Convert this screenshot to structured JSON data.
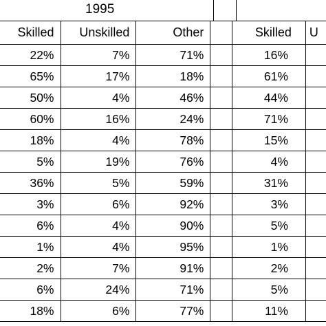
{
  "year_label": "1995",
  "headers": {
    "skilled": "Skilled",
    "unskilled": "Unskilled",
    "other": "Other",
    "gap": "",
    "skilled_2": "Skilled",
    "unskilled_2_partial": "U"
  },
  "rows": [
    {
      "skilled": "22%",
      "unskilled": "7%",
      "other": "71%",
      "skilled_2": "16%"
    },
    {
      "skilled": "65%",
      "unskilled": "17%",
      "other": "18%",
      "skilled_2": "61%"
    },
    {
      "skilled": "50%",
      "unskilled": "4%",
      "other": "46%",
      "skilled_2": "44%"
    },
    {
      "skilled": "60%",
      "unskilled": "16%",
      "other": "24%",
      "skilled_2": "71%"
    },
    {
      "skilled": "18%",
      "unskilled": "4%",
      "other": "78%",
      "skilled_2": "15%"
    },
    {
      "skilled": "5%",
      "unskilled": "19%",
      "other": "76%",
      "skilled_2": "4%"
    },
    {
      "skilled": "36%",
      "unskilled": "5%",
      "other": "59%",
      "skilled_2": "31%"
    },
    {
      "skilled": "3%",
      "unskilled": "6%",
      "other": "92%",
      "skilled_2": "3%"
    },
    {
      "skilled": "6%",
      "unskilled": "4%",
      "other": "90%",
      "skilled_2": "5%"
    },
    {
      "skilled": "1%",
      "unskilled": "4%",
      "other": "95%",
      "skilled_2": "1%"
    },
    {
      "skilled": "2%",
      "unskilled": "7%",
      "other": "91%",
      "skilled_2": "2%"
    },
    {
      "skilled": "6%",
      "unskilled": "24%",
      "other": "71%",
      "skilled_2": "5%"
    },
    {
      "skilled": "18%",
      "unskilled": "6%",
      "other": "77%",
      "skilled_2": "11%"
    }
  ]
}
